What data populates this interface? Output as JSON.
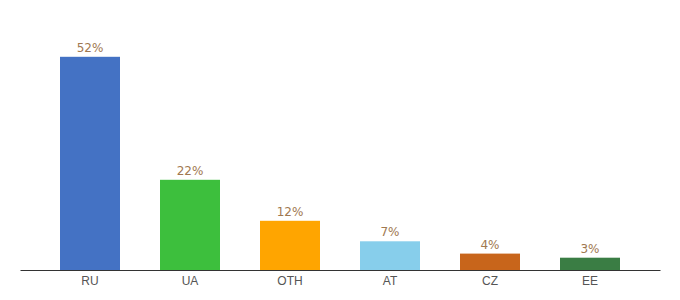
{
  "chart_data": {
    "type": "bar",
    "categories": [
      "RU",
      "UA",
      "OTH",
      "AT",
      "CZ",
      "EE"
    ],
    "values": [
      52,
      22,
      12,
      7,
      4,
      3
    ],
    "value_labels": [
      "52%",
      "22%",
      "12%",
      "7%",
      "4%",
      "3%"
    ],
    "colors": [
      "#4472C4",
      "#3DBF3D",
      "#FFA500",
      "#87CEEB",
      "#C8651B",
      "#3A7D44"
    ],
    "ylim": [
      0,
      60
    ],
    "data_labels": true,
    "tick_labels": "x",
    "grid": false
  }
}
